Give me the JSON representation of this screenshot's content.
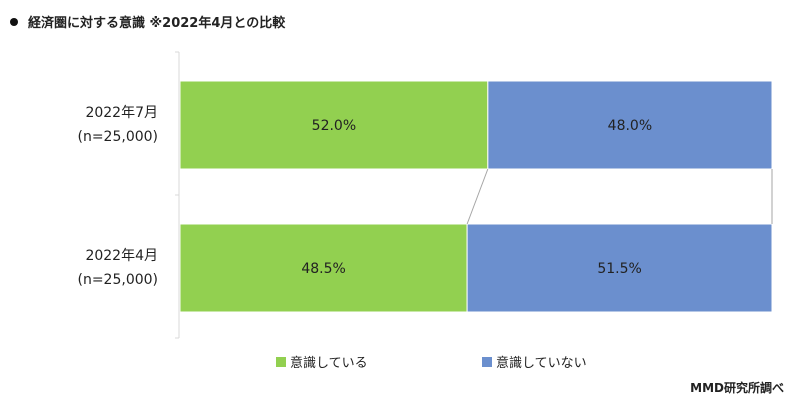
{
  "title": "経済圏に対する意識 ※2022年4月との比較",
  "source": "MMD研究所調べ",
  "colors": {
    "series_0": "#92D050",
    "series_1": "#6B8FCE",
    "connector": "#A6A6A6",
    "axis": "#D9D9D9"
  },
  "chart_data": {
    "type": "bar",
    "orientation": "horizontal",
    "stacked": true,
    "normalized_percent": true,
    "categories": [
      "2022年7月\n(n=25,000)",
      "2022年4月\n(n=25,000)"
    ],
    "category_lines": [
      [
        "2022年7月",
        "(n=25,000)"
      ],
      [
        "2022年4月",
        "(n=25,000)"
      ]
    ],
    "series": [
      {
        "name": "意識している",
        "values": [
          52.0,
          48.5
        ],
        "labels": [
          "52.0%",
          "48.5%"
        ]
      },
      {
        "name": "意識していない",
        "values": [
          48.0,
          51.5
        ],
        "labels": [
          "48.0%",
          "51.5%"
        ]
      }
    ],
    "xlim": [
      0,
      100
    ],
    "series_lines": true,
    "grid": false,
    "legend_position": "bottom"
  }
}
